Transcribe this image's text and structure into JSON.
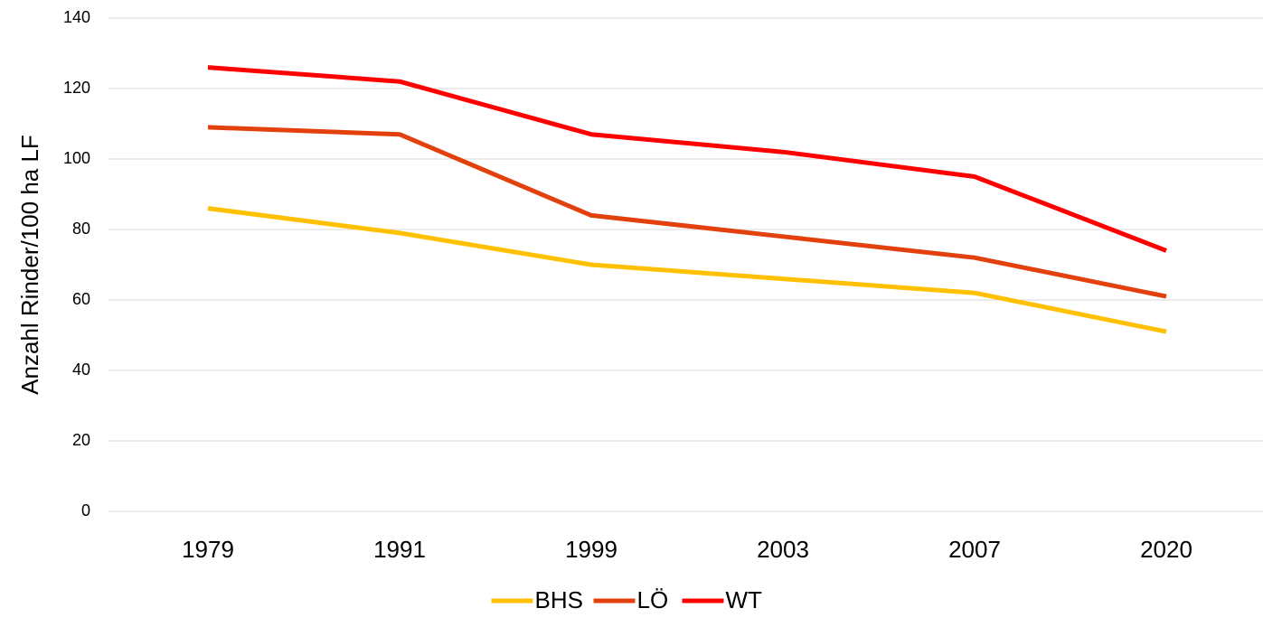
{
  "chart_data": {
    "type": "line",
    "y_label": "Anzahl Rinder/100 ha LF",
    "categories": [
      "1979",
      "1991",
      "1999",
      "2003",
      "2007",
      "2020"
    ],
    "series": [
      {
        "name": "BHS",
        "color": "#ffc000",
        "values": [
          86,
          79,
          70,
          66,
          62,
          51
        ]
      },
      {
        "name": "LÖ",
        "color": "#e2400d",
        "values": [
          109,
          107,
          84,
          78,
          72,
          61
        ]
      },
      {
        "name": "WT",
        "color": "#ff0000",
        "values": [
          126,
          122,
          107,
          102,
          95,
          74
        ]
      }
    ],
    "ylim": [
      0,
      140
    ],
    "yticks": [
      0,
      20,
      40,
      60,
      80,
      100,
      120,
      140
    ],
    "grid": true,
    "legend": "bottom"
  }
}
